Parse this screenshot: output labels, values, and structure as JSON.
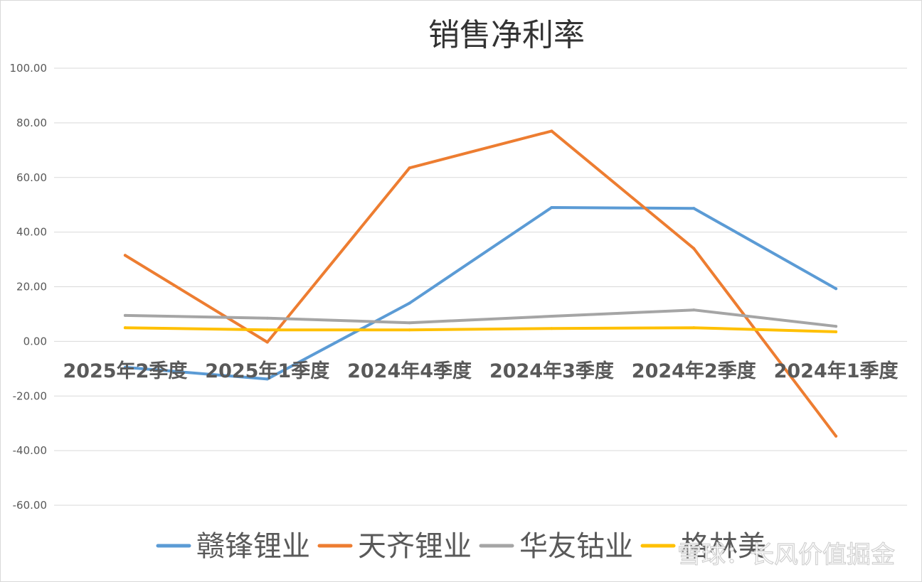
{
  "chart_data": {
    "type": "line",
    "title": "销售净利率",
    "categories": [
      "2025年2季度",
      "2025年1季度",
      "2024年4季度",
      "2024年3季度",
      "2024年2季度",
      "2024年1季度"
    ],
    "ylim": [
      -60,
      100
    ],
    "yticks": [
      -60,
      -40,
      -20,
      0,
      20,
      40,
      60,
      80,
      100
    ],
    "ytick_labels": [
      "-60.00",
      "-40.00",
      "-20.00",
      "0.00",
      "20.00",
      "40.00",
      "60.00",
      "80.00",
      "100.00"
    ],
    "grid": true,
    "legend_position": "bottom",
    "series": [
      {
        "name": "赣锋锂业",
        "color": "#5b9bd5",
        "values": [
          -9.5,
          -13.8,
          14.0,
          49.0,
          48.7,
          19.3
        ]
      },
      {
        "name": "天齐锂业",
        "color": "#ed7d31",
        "values": [
          31.5,
          -0.3,
          63.5,
          77.0,
          34.0,
          -34.7
        ]
      },
      {
        "name": "华友钴业",
        "color": "#a5a5a5",
        "values": [
          9.5,
          8.5,
          6.8,
          9.2,
          11.5,
          5.5
        ]
      },
      {
        "name": "格林美",
        "color": "#ffc000",
        "values": [
          5.0,
          4.2,
          4.2,
          4.7,
          5.0,
          3.5
        ]
      }
    ]
  },
  "watermark": {
    "text": "雪球：长风价值掘金"
  }
}
